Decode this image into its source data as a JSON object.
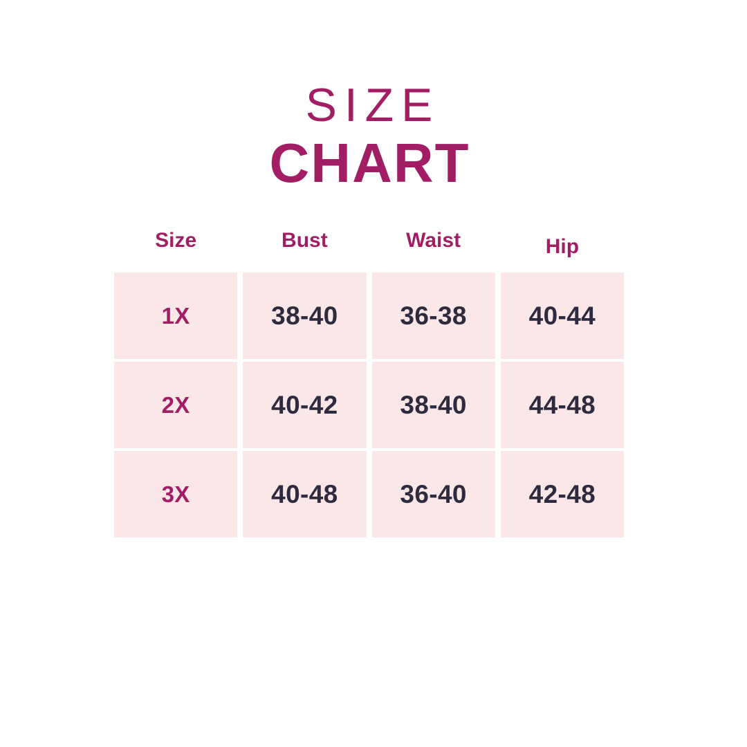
{
  "title": {
    "line1": "SIZE",
    "line2": "CHART"
  },
  "colors": {
    "accent": "#a21e64",
    "value_text": "#2e2a3f",
    "cell_background": "#fce7e8",
    "page_background": "#ffffff"
  },
  "chart_data": {
    "type": "table",
    "title": "SIZE CHART",
    "columns": [
      "Size",
      "Bust",
      "Waist",
      "Hip"
    ],
    "rows": [
      [
        "1X",
        "38-40",
        "36-38",
        "40-44"
      ],
      [
        "2X",
        "40-42",
        "38-40",
        "44-48"
      ],
      [
        "3X",
        "40-48",
        "36-40",
        "42-48"
      ]
    ],
    "layout_hints": {
      "header_text_color": "magenta accent",
      "size_column_text_color": "magenta accent",
      "value_text_color": "dark navy",
      "cell_fill": "light pink blocks separated by white gutters",
      "grid": "3 data rows x 4 columns, no borders"
    }
  }
}
